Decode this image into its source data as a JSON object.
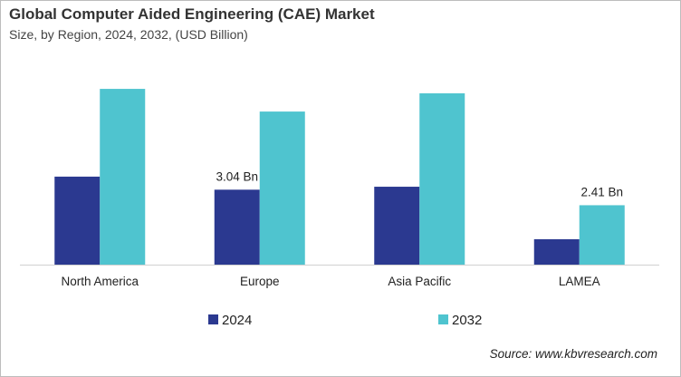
{
  "chart_data": {
    "type": "bar",
    "title": "Global Computer Aided Engineering (CAE) Market",
    "subtitle": "Size, by Region, 2024, 2032, (USD Billion)",
    "categories": [
      "North America",
      "Europe",
      "Asia Pacific",
      "LAMEA"
    ],
    "series": [
      {
        "name": "2024",
        "values": [
          3.57,
          3.04,
          3.16,
          1.03
        ],
        "color": "#2b3990"
      },
      {
        "name": "2032",
        "values": [
          7.13,
          6.21,
          6.95,
          2.41
        ],
        "color": "#4fc4cf"
      }
    ],
    "data_labels": [
      {
        "series": 0,
        "category": 1,
        "text": "3.04 Bn"
      },
      {
        "series": 1,
        "category": 3,
        "text": "2.41 Bn"
      }
    ],
    "ylim": [
      0,
      7.5
    ],
    "grid": false,
    "legend_placement": "bottom",
    "source": "Source: www.kbvresearch.com"
  }
}
